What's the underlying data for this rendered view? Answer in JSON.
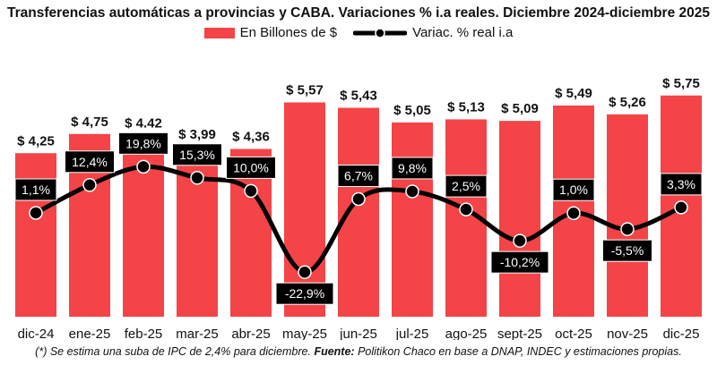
{
  "chart_data": {
    "type": "bar",
    "title": "Transferencias automáticas a provincias y CABA. Variaciones % i.a reales. Diciembre 2024-diciembre 2025",
    "categories": [
      "dic-24",
      "ene-25",
      "feb-25",
      "mar-25",
      "abr-25",
      "may-25",
      "jun-25",
      "jul-25",
      "ago-25",
      "sept-25",
      "oct-25",
      "nov-25",
      "dic-25"
    ],
    "series": [
      {
        "name": "En Billones de $",
        "type": "bar",
        "color": "#f44447",
        "values": [
          4.25,
          4.75,
          4.42,
          3.99,
          4.36,
          5.57,
          5.43,
          5.05,
          5.13,
          5.09,
          5.49,
          5.26,
          5.75
        ],
        "labels": [
          "$ 4,25",
          "$ 4,75",
          "$ 4.42",
          "$ 3,99",
          "$ 4,36",
          "$ 5,57",
          "$ 5,43",
          "$ 5,05",
          "$ 5,13",
          "$ 5,09",
          "$ 5,49",
          "$ 5,26",
          "$ 5,75"
        ]
      },
      {
        "name": "Variac. % real i.a",
        "type": "line",
        "color": "#000000",
        "values": [
          1.1,
          12.4,
          19.8,
          15.3,
          10.0,
          -22.9,
          6.7,
          9.8,
          2.5,
          -10.2,
          1.0,
          -5.5,
          3.3
        ],
        "labels": [
          "1,1%",
          "12,4%",
          "19,8%",
          "15,3%",
          "10,0%",
          "-22,9%",
          "6,7%",
          "9,8%",
          "2,5%",
          "-10,2%",
          "1,0%",
          "-5,5%",
          "3,3%"
        ]
      }
    ],
    "legend_placement": "top-center",
    "grid": false
  },
  "footnote": {
    "prefix": "(*) Se estima una suba de IPC de 2,4% para diciembre. ",
    "source_label": "Fuente:",
    "source_text": " Politikon Chaco en base a DNAP, INDEC y estimaciones propias."
  }
}
